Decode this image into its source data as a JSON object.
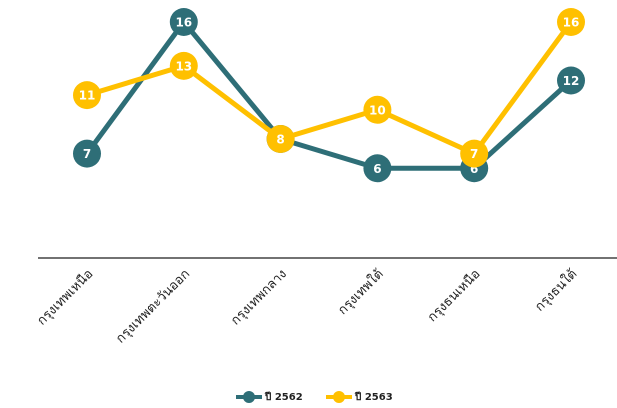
{
  "chart_data": {
    "type": "line",
    "categories": [
      "กรุงเทพเหนือ",
      "กรุงเทพตะวันออก",
      "กรุงเทพกลาง",
      "กรุงเทพใต้",
      "กรุงธนเหนือ",
      "กรุงธนใต้"
    ],
    "series": [
      {
        "name": "ปี 2562",
        "color": "#2e6e77",
        "values": [
          7,
          16,
          8,
          6,
          6,
          12
        ]
      },
      {
        "name": "ปี 2563",
        "color": "#ffc000",
        "values": [
          11,
          13,
          8,
          10,
          7,
          16
        ]
      }
    ],
    "ylim": [
      0,
      16
    ]
  }
}
